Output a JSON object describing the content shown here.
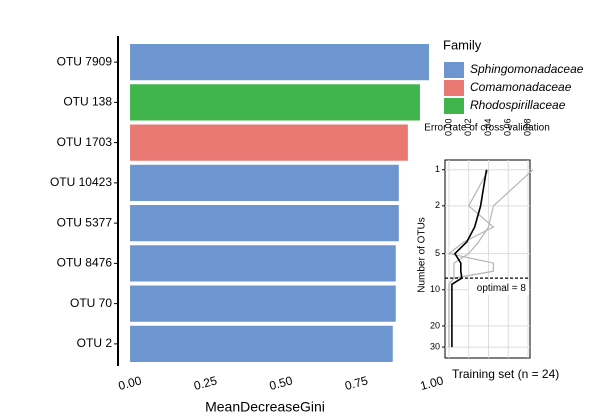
{
  "chart_data": [
    {
      "type": "hbar",
      "categories": [
        "OTU 7909",
        "OTU 138",
        "OTU 1703",
        "OTU 10423",
        "OTU 5377",
        "OTU 8476",
        "OTU 70",
        "OTU 2"
      ],
      "series": [
        {
          "name": "Sphingomonadaceae",
          "color": "#6d95cf",
          "values": [
            0.99,
            null,
            null,
            0.89,
            0.89,
            0.88,
            0.88,
            0.87
          ]
        },
        {
          "name": "Comamonadaceae",
          "color": "#e97772",
          "values": [
            null,
            null,
            0.92,
            null,
            null,
            null,
            null,
            null
          ]
        },
        {
          "name": "Rhodospirillaceae",
          "color": "#3fb54c",
          "values": [
            null,
            0.96,
            null,
            null,
            null,
            null,
            null,
            null
          ]
        }
      ],
      "legend_title": "Family",
      "xlabel": "MeanDecreaseGini",
      "xlim": [
        -0.04,
        1.0
      ],
      "xticks": [
        {
          "value": 0,
          "label": "0.00"
        },
        {
          "value": 0.25,
          "label": "0.25"
        },
        {
          "value": 0.5,
          "label": "0.50"
        },
        {
          "value": 0.75,
          "label": "0.75"
        },
        {
          "value": 1,
          "label": "1.00"
        }
      ]
    },
    {
      "type": "hline",
      "title": "Error rate of cross-validation",
      "ylabel": "Number of OTUs",
      "xlabel": "Training set (n = 24)",
      "y": [
        1,
        2,
        3,
        4,
        5,
        6,
        7,
        8,
        9,
        10,
        15,
        20,
        25,
        30
      ],
      "series": [
        {
          "color": "#b5b5b5",
          "values": [
            0.085,
            0.045,
            0.04,
            0.03,
            0.02,
            0.005,
            0.005,
            0.005,
            0,
            0,
            0,
            0,
            0,
            0
          ]
        },
        {
          "color": "#b5b5b5",
          "values": [
            0.04,
            0.02,
            0.045,
            0.015,
            0.0,
            0.045,
            0.045,
            0.005,
            0,
            0,
            0,
            0,
            0,
            0
          ]
        },
        {
          "color": "#000000",
          "values": [
            0.038,
            0.032,
            0.026,
            0.018,
            0.006,
            0.012,
            0.012,
            0.013,
            0.003,
            0.003,
            0.003,
            0.003,
            0.003,
            0.003
          ]
        }
      ],
      "xlim": [
        -0.004,
        0.082
      ],
      "xticks": [
        {
          "value": 0,
          "label": "0.00"
        },
        {
          "value": 0.02,
          "label": "0.02"
        },
        {
          "value": 0.04,
          "label": "0.04"
        },
        {
          "value": 0.06,
          "label": "0.06"
        },
        {
          "value": 0.08,
          "label": "0.08"
        }
      ],
      "ylim": [
        0.83,
        37
      ],
      "yticks": [
        1,
        2,
        5,
        10,
        20,
        30
      ],
      "ylog": true,
      "grid": true,
      "optimal": 8,
      "optimal_label": "optimal = 8"
    }
  ]
}
